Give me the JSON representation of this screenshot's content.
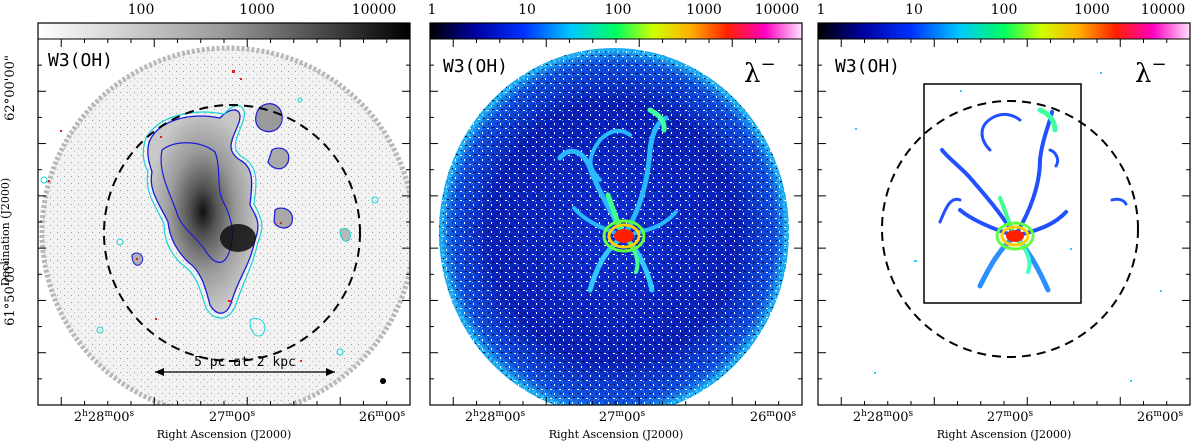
{
  "figure": {
    "panels": [
      {
        "title": "W3(OH)",
        "colorbar": {
          "scale": "log",
          "colormap": "grayscale",
          "ticks": [
            "100",
            "1000",
            "10000"
          ]
        },
        "scalebar_label": "5 pc at 2 kpc",
        "show_lambda": false
      },
      {
        "title": "W3(OH)",
        "colorbar": {
          "scale": "log",
          "colormap": "rainbow",
          "ticks": [
            "1",
            "10",
            "100",
            "1000",
            "10000"
          ]
        },
        "lambda_label": "λ",
        "lambda_superscript": "−",
        "show_lambda": true
      },
      {
        "title": "W3(OH)",
        "colorbar": {
          "scale": "log",
          "colormap": "rainbow",
          "ticks": [
            "1",
            "10",
            "100",
            "1000",
            "10000"
          ]
        },
        "lambda_label": "λ",
        "lambda_superscript": "−",
        "show_lambda": true
      }
    ],
    "x_axis": {
      "title": "Right Ascension (J2000)",
      "ticks": [
        {
          "hours": "2",
          "h": "h",
          "minutes": "28",
          "m": "m",
          "seconds": "00",
          "s": "s"
        },
        {
          "minutes": "27",
          "m": "m",
          "seconds": "00",
          "s": "s"
        },
        {
          "minutes": "26",
          "m": "m",
          "seconds": "00",
          "s": "s"
        }
      ]
    },
    "y_axis": {
      "title": "Declination (J2000)",
      "ticks": [
        "62°00'00\"",
        "61°50'00\""
      ]
    },
    "colors": {
      "contour_blue": "#1a1adc",
      "contour_cyan": "#19d4d4",
      "contour_red": "#e02020",
      "frame": "#000000"
    }
  }
}
